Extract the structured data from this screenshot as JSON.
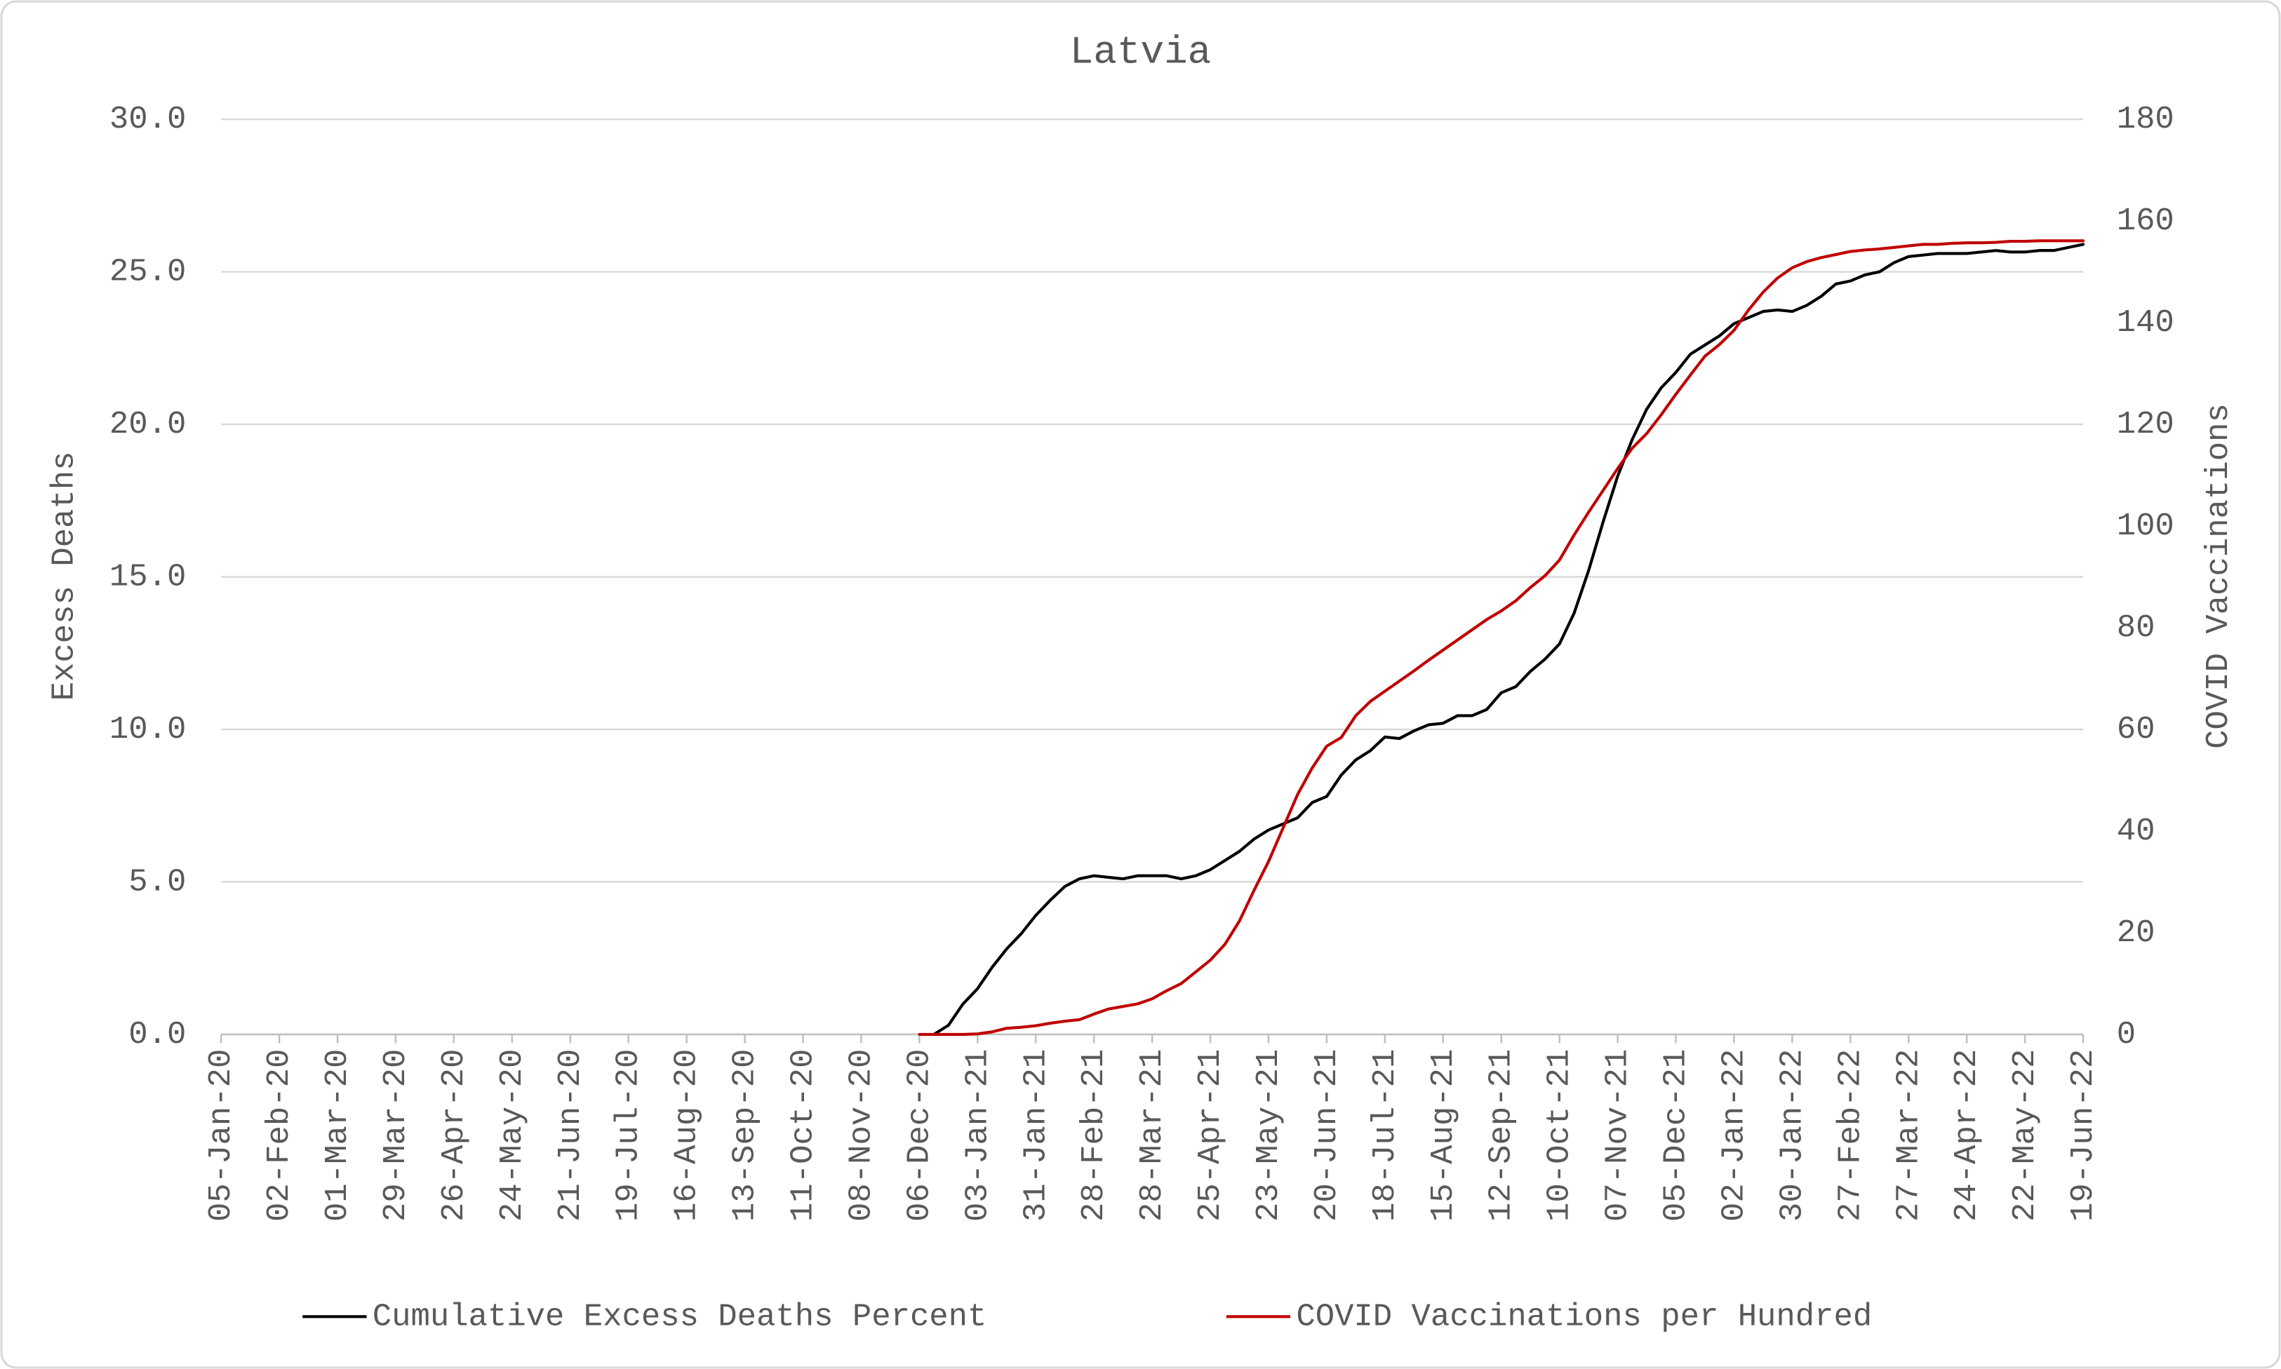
{
  "chart_data": {
    "type": "line",
    "title": "Latvia",
    "y_label": "Excess Deaths",
    "y2_label": "COVID Vaccinations",
    "categories": [
      "05-Jan-20",
      null,
      null,
      null,
      "02-Feb-20",
      null,
      null,
      null,
      "01-Mar-20",
      null,
      null,
      null,
      "29-Mar-20",
      null,
      null,
      null,
      "26-Apr-20",
      null,
      null,
      null,
      "24-May-20",
      null,
      null,
      null,
      "21-Jun-20",
      null,
      null,
      null,
      "19-Jul-20",
      null,
      null,
      null,
      "16-Aug-20",
      null,
      null,
      null,
      "13-Sep-20",
      null,
      null,
      null,
      "11-Oct-20",
      null,
      null,
      null,
      "08-Nov-20",
      null,
      null,
      null,
      "06-Dec-20",
      null,
      null,
      null,
      "03-Jan-21",
      null,
      null,
      null,
      "31-Jan-21",
      null,
      null,
      null,
      "28-Feb-21",
      null,
      null,
      null,
      "28-Mar-21",
      null,
      null,
      null,
      "25-Apr-21",
      null,
      null,
      null,
      "23-May-21",
      null,
      null,
      null,
      "20-Jun-21",
      null,
      null,
      null,
      "18-Jul-21",
      null,
      null,
      null,
      "15-Aug-21",
      null,
      null,
      null,
      "12-Sep-21",
      null,
      null,
      null,
      "10-Oct-21",
      null,
      null,
      null,
      "07-Nov-21",
      null,
      null,
      null,
      "05-Dec-21",
      null,
      null,
      null,
      "02-Jan-22",
      null,
      null,
      null,
      "30-Jan-22",
      null,
      null,
      null,
      "27-Feb-22",
      null,
      null,
      null,
      "27-Mar-22",
      null,
      null,
      null,
      "24-Apr-22",
      null,
      null,
      null,
      "22-May-22",
      null,
      null,
      null,
      "19-Jun-22"
    ],
    "series": [
      {
        "name": "Cumulative Excess Deaths Percent",
        "color": "#000000",
        "axis": "y",
        "values": [
          0,
          null,
          null,
          null,
          null,
          null,
          null,
          null,
          null,
          null,
          null,
          null,
          null,
          null,
          null,
          null,
          null,
          null,
          null,
          null,
          null,
          null,
          null,
          null,
          null,
          null,
          null,
          null,
          null,
          null,
          null,
          null,
          null,
          null,
          null,
          null,
          null,
          null,
          null,
          null,
          null,
          null,
          null,
          null,
          null,
          null,
          null,
          null,
          null,
          0,
          0.3,
          1.0,
          1.5,
          2.2,
          2.8,
          3.3,
          3.9,
          4.4,
          4.85,
          5.1,
          5.2,
          5.15,
          5.1,
          5.2,
          5.2,
          5.2,
          5.1,
          5.2,
          5.4,
          5.7,
          6.0,
          6.4,
          6.7,
          6.9,
          7.1,
          7.6,
          7.8,
          8.5,
          9.0,
          9.3,
          9.75,
          9.7,
          9.95,
          10.15,
          10.2,
          10.45,
          10.45,
          10.65,
          11.2,
          11.4,
          11.9,
          12.3,
          12.8,
          13.8,
          15.2,
          16.8,
          18.3,
          19.5,
          20.5,
          21.2,
          21.7,
          22.3,
          22.6,
          22.9,
          23.3,
          23.5,
          23.7,
          23.75,
          23.7,
          23.9,
          24.2,
          24.6,
          24.7,
          24.9,
          25.0,
          25.3,
          25.5,
          25.55,
          25.6,
          25.6,
          25.6,
          25.65,
          25.7,
          25.65,
          25.65,
          25.7,
          25.7,
          25.8,
          25.9
        ]
      },
      {
        "name": "COVID Vaccinations per Hundred",
        "color": "#c00000",
        "axis": "y2",
        "values": [
          null,
          null,
          null,
          null,
          null,
          null,
          null,
          null,
          null,
          null,
          null,
          null,
          null,
          null,
          null,
          null,
          null,
          null,
          null,
          null,
          null,
          null,
          null,
          null,
          null,
          null,
          null,
          null,
          null,
          null,
          null,
          null,
          null,
          null,
          null,
          null,
          null,
          null,
          null,
          null,
          null,
          null,
          null,
          null,
          null,
          null,
          null,
          null,
          0,
          0,
          0,
          0,
          0.1,
          0.5,
          1.2,
          1.4,
          1.7,
          2.2,
          2.6,
          2.9,
          4,
          5,
          5.5,
          6,
          7,
          8.6,
          10,
          12.3,
          14.6,
          17.7,
          22.3,
          28.3,
          34,
          40.6,
          47.2,
          52.4,
          56.7,
          58.4,
          62.7,
          65.5,
          67.5,
          69.5,
          71.5,
          73.6,
          75.6,
          77.6,
          79.6,
          81.6,
          83.3,
          85.3,
          87.9,
          90.2,
          93.3,
          98.2,
          102.7,
          107,
          111.3,
          115.3,
          118.2,
          121.9,
          125.9,
          129.7,
          133.4,
          135.7,
          138.5,
          142.5,
          146,
          148.8,
          150.8,
          152,
          152.8,
          153.4,
          154,
          154.3,
          154.5,
          154.8,
          155.1,
          155.4,
          155.4,
          155.6,
          155.7,
          155.7,
          155.8,
          156,
          156,
          156.1,
          156.1,
          156.1,
          156.1
        ]
      }
    ],
    "ylim": [
      0,
      30
    ],
    "yticks": [
      {
        "value": 0,
        "label": "0.0"
      },
      {
        "value": 5,
        "label": "5.0"
      },
      {
        "value": 10,
        "label": "10.0"
      },
      {
        "value": 15,
        "label": "15.0"
      },
      {
        "value": 20,
        "label": "20.0"
      },
      {
        "value": 25,
        "label": "25.0"
      },
      {
        "value": 30,
        "label": "30.0"
      }
    ],
    "y2lim": [
      0,
      180
    ],
    "y2ticks": [
      0,
      20,
      40,
      60,
      80,
      100,
      120,
      140,
      160,
      180
    ],
    "grid": true,
    "legend": "bottom"
  }
}
